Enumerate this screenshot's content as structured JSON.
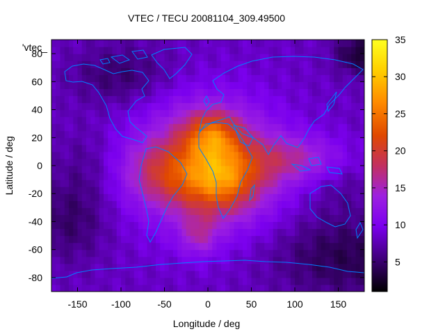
{
  "chart_data": {
    "type": "heatmap",
    "title": "VTEC / TECU 20081104_309.49500",
    "xlabel": "Longitude / deg",
    "ylabel": "Latitude / deg",
    "key_label": "'vtec_",
    "xlim": [
      -180,
      180
    ],
    "ylim": [
      -90,
      90
    ],
    "x_ticks": [
      -150,
      -100,
      -50,
      0,
      50,
      100,
      150
    ],
    "x_tick_labels": [
      "-150",
      "-100",
      "-50",
      "0",
      "50",
      "100",
      "150"
    ],
    "y_ticks": [
      -80,
      -60,
      -40,
      -20,
      0,
      20,
      40,
      60,
      80
    ],
    "y_tick_labels": [
      "-80",
      "-60",
      "-40",
      "-20",
      "0",
      "20",
      "40",
      "60",
      "80"
    ],
    "colorbar": {
      "range": [
        1,
        35
      ],
      "ticks": [
        5,
        10,
        15,
        20,
        25,
        30,
        35
      ],
      "tick_labels": [
        "5",
        "10",
        "15",
        "20",
        "25",
        "30",
        "35"
      ],
      "palette": [
        "#000000",
        "#3a0070",
        "#7b00ee",
        "#9d20e0",
        "#c23060",
        "#e04800",
        "#ff8a00",
        "#ffd000",
        "#ffff20"
      ]
    },
    "model": {
      "background": 8,
      "blobs": [
        {
          "lon": 0,
          "lat": 0,
          "slon": 55,
          "slat": 30,
          "amp": 12
        },
        {
          "lon": 5,
          "lat": 22,
          "slon": 22,
          "slat": 12,
          "amp": 9
        },
        {
          "lon": 15,
          "lat": -10,
          "slon": 30,
          "slat": 15,
          "amp": 9
        },
        {
          "lon": 100,
          "lat": 5,
          "slon": 40,
          "slat": 12,
          "amp": 6
        },
        {
          "lon": -55,
          "lat": -5,
          "slon": 30,
          "slat": 15,
          "amp": 5
        },
        {
          "lon": -10,
          "lat": -50,
          "slon": 15,
          "slat": 10,
          "amp": 5
        },
        {
          "lon": 160,
          "lat": -65,
          "slon": 60,
          "slat": 20,
          "amp": -4
        },
        {
          "lon": -160,
          "lat": -40,
          "slon": 30,
          "slat": 20,
          "amp": -3
        },
        {
          "lon": -100,
          "lat": 65,
          "slon": 40,
          "slat": 15,
          "amp": -3
        },
        {
          "lon": 175,
          "lat": 80,
          "slon": 20,
          "slat": 10,
          "amp": -5
        },
        {
          "lon": -140,
          "lat": 0,
          "slon": 25,
          "slat": 20,
          "amp": -1.5
        },
        {
          "lon": 150,
          "lat": -15,
          "slon": 30,
          "slat": 15,
          "amp": -1.5
        }
      ]
    },
    "coastline_color": "#0080ff"
  }
}
